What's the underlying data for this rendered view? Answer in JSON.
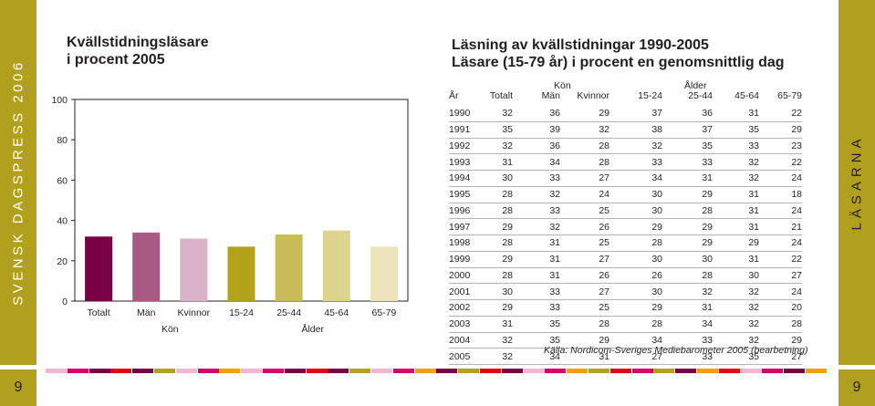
{
  "side_left_text": "SVENSK DAGSPRESS 2006",
  "side_right_text": "LÄSARNA",
  "page_number_left": "9",
  "page_number_right": "9",
  "chart_title_lines": [
    "Kvällstidningsläsare",
    "i procent 2005"
  ],
  "table_title_lines": [
    "Läsning av kvällstidningar 1990-2005",
    "Läsare (15-79 år) i procent en genomsnittlig dag"
  ],
  "chart_data": [
    {
      "type": "bar",
      "title": "Kvällstidningsläsare i procent 2005",
      "categories": [
        "Totalt",
        "Män",
        "Kvinnor",
        "15-24",
        "25-44",
        "45-64",
        "65-79"
      ],
      "values": [
        32,
        34,
        31,
        27,
        33,
        35,
        27
      ],
      "colors": [
        "#7a0046",
        "#a85a82",
        "#d7b2c8",
        "#b3a21a",
        "#c9bc57",
        "#dcd38f",
        "#ece5bb"
      ],
      "group_labels": [
        {
          "label": "Kön",
          "first": 1,
          "last": 2
        },
        {
          "label": "Ålder",
          "first": 3,
          "last": 6
        }
      ],
      "yticks": [
        0,
        20,
        40,
        60,
        80,
        100
      ],
      "ylim": [
        0,
        100
      ],
      "grid": false
    },
    {
      "type": "table",
      "title": "Läsning av kvällstidningar 1990-2005 Läsare (15-79 år) i procent en genomsnittlig dag",
      "group_headers": {
        "kon": "Kön",
        "alder": "Ålder"
      },
      "columns": [
        "År",
        "Totalt",
        "Män",
        "Kvinnor",
        "15-24",
        "25-44",
        "45-64",
        "65-79"
      ],
      "rows": [
        [
          "1990",
          "32",
          "36",
          "29",
          "37",
          "36",
          "31",
          "22"
        ],
        [
          "1991",
          "35",
          "39",
          "32",
          "38",
          "37",
          "35",
          "29"
        ],
        [
          "1992",
          "32",
          "36",
          "28",
          "32",
          "35",
          "33",
          "23"
        ],
        [
          "1993",
          "31",
          "34",
          "28",
          "33",
          "33",
          "32",
          "22"
        ],
        [
          "1994",
          "30",
          "33",
          "27",
          "34",
          "31",
          "32",
          "24"
        ],
        [
          "1995",
          "28",
          "32",
          "24",
          "30",
          "29",
          "31",
          "18"
        ],
        [
          "1996",
          "28",
          "33",
          "25",
          "30",
          "28",
          "31",
          "24"
        ],
        [
          "1997",
          "29",
          "32",
          "26",
          "29",
          "29",
          "31",
          "21"
        ],
        [
          "1998",
          "28",
          "31",
          "25",
          "28",
          "29",
          "29",
          "24"
        ],
        [
          "1999",
          "29",
          "31",
          "27",
          "30",
          "30",
          "31",
          "22"
        ],
        [
          "2000",
          "28",
          "31",
          "26",
          "26",
          "28",
          "30",
          "27"
        ],
        [
          "2001",
          "30",
          "33",
          "27",
          "30",
          "32",
          "32",
          "24"
        ],
        [
          "2002",
          "29",
          "33",
          "25",
          "29",
          "31",
          "32",
          "20"
        ],
        [
          "2003",
          "31",
          "35",
          "28",
          "28",
          "34",
          "32",
          "28"
        ],
        [
          "2004",
          "32",
          "35",
          "29",
          "34",
          "33",
          "32",
          "29"
        ],
        [
          "2005",
          "32",
          "34",
          "31",
          "27",
          "33",
          "35",
          "27"
        ]
      ],
      "source": "Källa: Nordicom-Sveriges Mediebarometer 2005 (bearbetning)"
    }
  ],
  "color_strip": [
    "#f4b6cf",
    "#d6006f",
    "#7a0046",
    "#e30613",
    "#7a0046",
    "#b3a21a",
    "#f4b6cf",
    "#d6006f",
    "#f6a000",
    "#f4b6cf",
    "#d6006f",
    "#7a0046",
    "#e30613",
    "#7a0046",
    "#b3a21a",
    "#f4b6cf",
    "#d6006f",
    "#f6a000",
    "#7a0046",
    "#b3a21a",
    "#e30613",
    "#7a0046",
    "#f4b6cf",
    "#d6006f",
    "#f6a000",
    "#b3a21a",
    "#e30613",
    "#d6006f",
    "#b3a21a",
    "#7a0046",
    "#f6a000",
    "#e30613",
    "#f4b6cf",
    "#d6006f",
    "#7a0046",
    "#f6a000"
  ],
  "colors": {
    "olive_band": "#b0a01e",
    "rule": "#b4b4b4"
  }
}
